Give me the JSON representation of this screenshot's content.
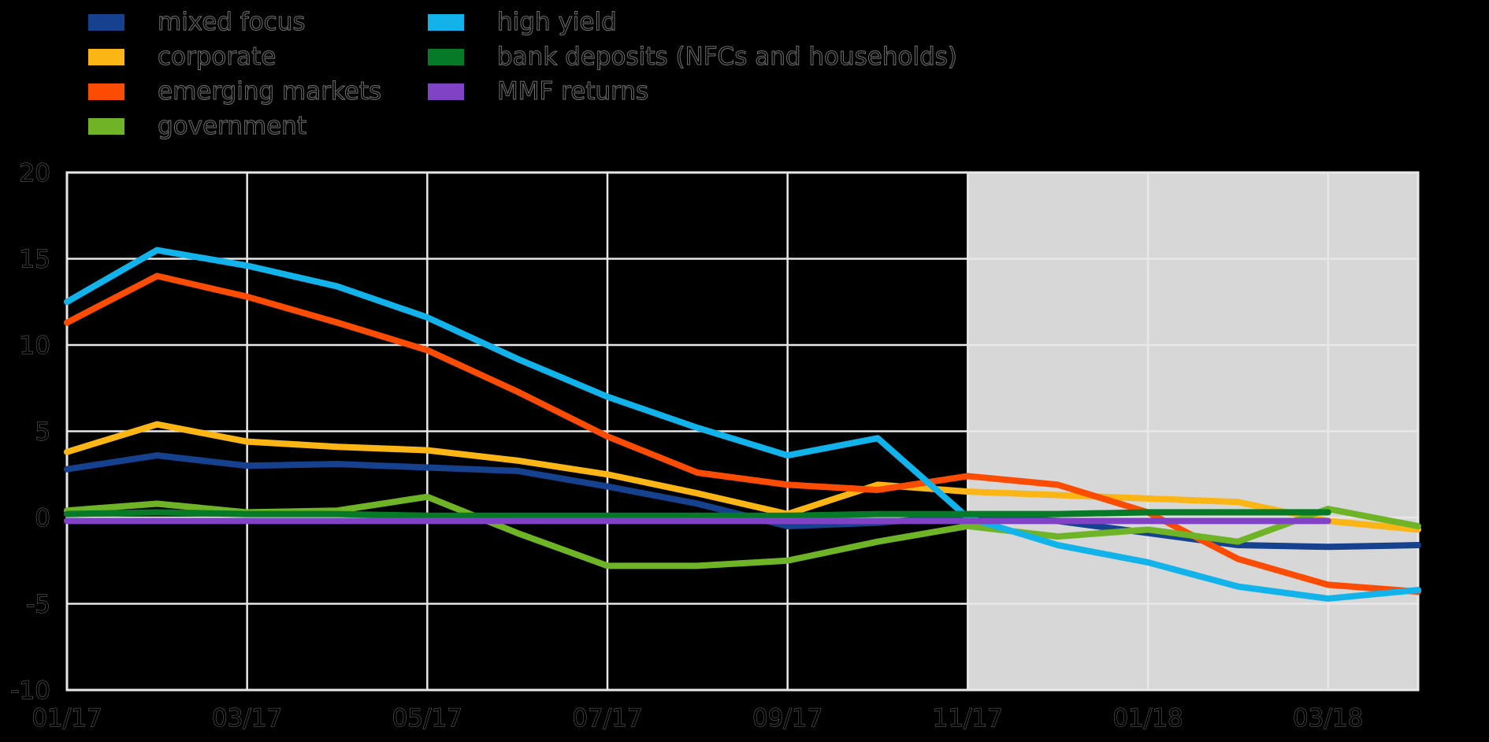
{
  "style": {
    "background": "#000000",
    "grid_color": "#e8e8e8",
    "forecast_fill": "#d7d7d7",
    "text_color": "#000000"
  },
  "legend": {
    "columns": [
      [
        0,
        1,
        2,
        3
      ],
      [
        4,
        5,
        6
      ]
    ]
  },
  "chart_data": {
    "type": "line",
    "title": "",
    "xlabel": "",
    "ylabel": "",
    "ylim": [
      -10,
      20
    ],
    "grid": true,
    "legend_position": "top",
    "categories": [
      "01/17",
      "02/17",
      "03/17",
      "04/17",
      "05/17",
      "06/17",
      "07/17",
      "08/17",
      "09/17",
      "10/17",
      "11/17",
      "12/17",
      "01/18",
      "02/18",
      "03/18",
      "04/18"
    ],
    "x_tick_months": [
      0,
      2,
      4,
      6,
      8,
      10,
      12,
      14
    ],
    "x_tick_labels": [
      "01/17",
      "03/17",
      "05/17",
      "07/17",
      "09/17",
      "11/17",
      "01/18",
      "03/18"
    ],
    "y_ticks": [
      20,
      15,
      10,
      5,
      0,
      -5,
      -10
    ],
    "y_tick_labels": [
      "20",
      "15",
      "10",
      "5",
      "0",
      "-5",
      "-10"
    ],
    "forecast_region": {
      "from_category": "11/17",
      "from_month_index": 10,
      "to_month_index": 15,
      "color": "#d7d7d7"
    },
    "series": [
      {
        "name": "mixed focus",
        "color": "#16418f",
        "values": [
          2.8,
          3.6,
          3.0,
          3.1,
          2.9,
          2.7,
          1.8,
          0.8,
          -0.5,
          -0.3,
          0.1,
          -0.2,
          -0.9,
          -1.6,
          -1.7,
          -1.6
        ]
      },
      {
        "name": "corporate",
        "color": "#fbb616",
        "values": [
          3.8,
          5.4,
          4.4,
          4.1,
          3.9,
          3.3,
          2.5,
          1.4,
          0.2,
          1.9,
          1.5,
          1.3,
          1.1,
          0.9,
          -0.2,
          -0.7
        ]
      },
      {
        "name": "emerging markets",
        "color": "#fc4c02",
        "values": [
          11.3,
          14.0,
          12.8,
          11.3,
          9.7,
          7.3,
          4.7,
          2.6,
          1.9,
          1.6,
          2.4,
          1.9,
          0.3,
          -2.4,
          -3.9,
          -4.3
        ]
      },
      {
        "name": "government",
        "color": "#6fb427",
        "values": [
          0.4,
          0.8,
          0.3,
          0.4,
          1.2,
          -0.9,
          -2.8,
          -2.8,
          -2.5,
          -1.4,
          -0.5,
          -1.1,
          -0.7,
          -1.4,
          0.5,
          -0.5
        ]
      },
      {
        "name": "high yield",
        "color": "#12b3ea",
        "values": [
          12.5,
          15.5,
          14.6,
          13.4,
          11.6,
          9.2,
          7.0,
          5.2,
          3.6,
          4.6,
          0.0,
          -1.6,
          -2.6,
          -4.0,
          -4.7,
          -4.2
        ]
      },
      {
        "name": "bank deposits (NFCs and households)",
        "color": "#067a27",
        "values": [
          0.2,
          0.3,
          0.2,
          0.2,
          0.1,
          0.1,
          0.1,
          0.1,
          0.1,
          0.2,
          0.2,
          0.2,
          0.3,
          0.3,
          0.3,
          null
        ]
      },
      {
        "name": "MMF returns",
        "color": "#8143c6",
        "values": [
          -0.2,
          -0.2,
          -0.2,
          -0.2,
          -0.2,
          -0.2,
          -0.2,
          -0.2,
          -0.2,
          -0.2,
          -0.2,
          -0.2,
          -0.2,
          -0.2,
          -0.2,
          null
        ]
      }
    ]
  }
}
